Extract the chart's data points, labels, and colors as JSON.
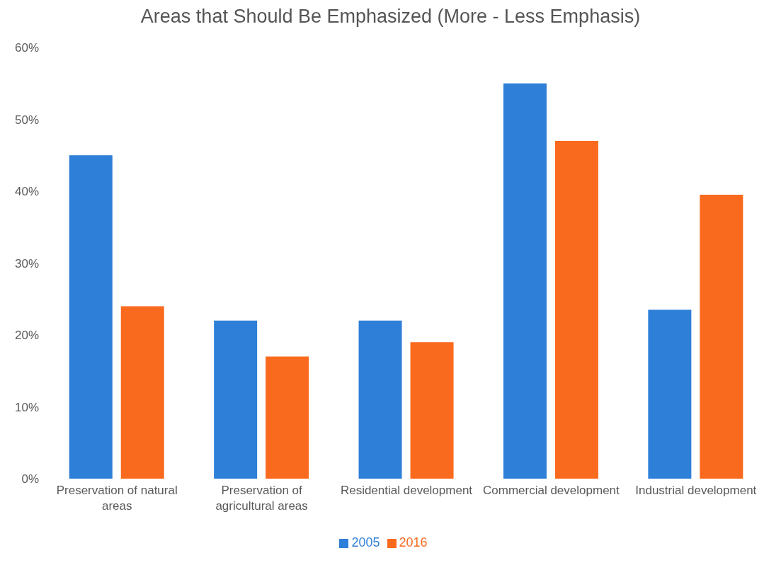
{
  "chart_data": {
    "type": "bar",
    "title": "Areas that Should Be Emphasized (More - Less Emphasis)",
    "categories": [
      "Preservation of natural areas",
      "Preservation of agricultural areas",
      "Residential development",
      "Commercial development",
      "Industrial development"
    ],
    "series": [
      {
        "name": "2005",
        "color": "#2e7fd8",
        "values": [
          45,
          22,
          22,
          55,
          23.5
        ]
      },
      {
        "name": "2016",
        "color": "#fa6a1e",
        "values": [
          24,
          17,
          19,
          47,
          39.5
        ]
      }
    ],
    "ylim": [
      0,
      60
    ],
    "yticks": [
      {
        "value": 0,
        "label": "0%"
      },
      {
        "value": 10,
        "label": "10%"
      },
      {
        "value": 20,
        "label": "20%"
      },
      {
        "value": 30,
        "label": "30%"
      },
      {
        "value": 40,
        "label": "40%"
      },
      {
        "value": 50,
        "label": "50%"
      },
      {
        "value": 60,
        "label": "60%"
      }
    ],
    "grid": false,
    "legend": "bottom"
  }
}
